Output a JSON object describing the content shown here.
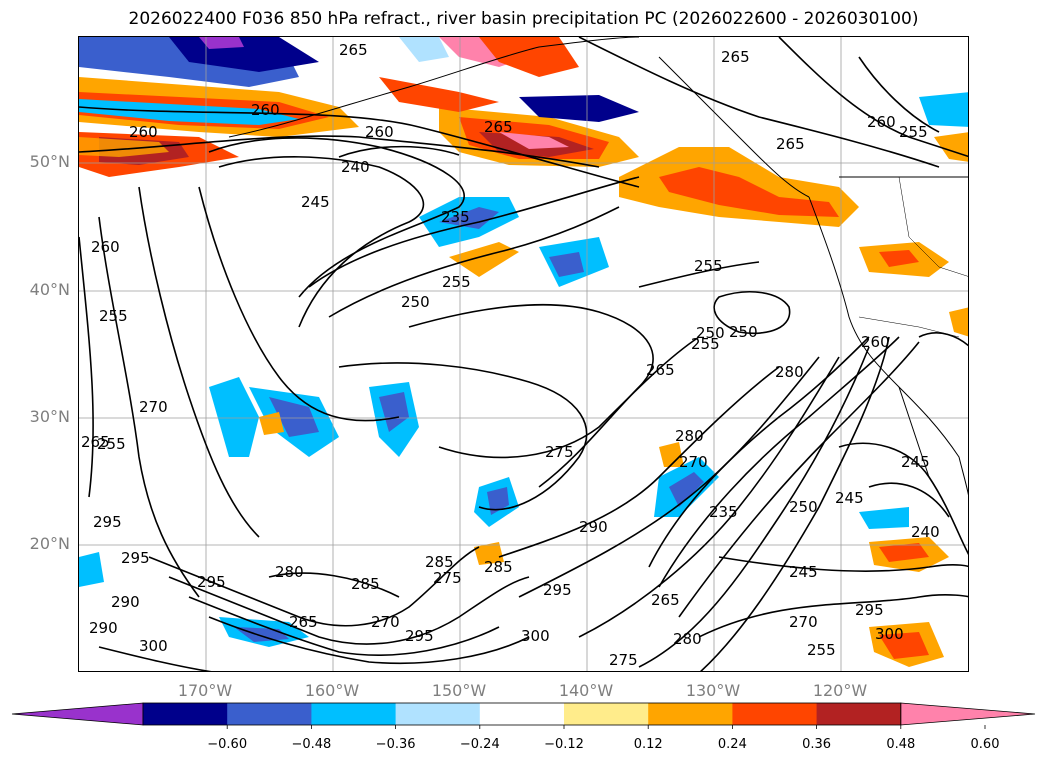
{
  "title": "2026022400 F036 850 hPa refract., river basin precipitation PC (2026022600 - 2026030100)",
  "lat_labels": [
    "50°N",
    "40°N",
    "30°N",
    "20°N"
  ],
  "lon_labels": [
    "170°W",
    "160°W",
    "150°W",
    "140°W",
    "130°W",
    "120°W"
  ],
  "colorbar": {
    "colors": [
      "#9932cc",
      "#00008b",
      "#3a5fcd",
      "#00bfff",
      "#b0e2ff",
      "#ffffff",
      "#ffec8b",
      "#ffa500",
      "#ff4500",
      "#b22222",
      "#ff82ab"
    ],
    "tick_labels": [
      "−0.60",
      "−0.48",
      "−0.36",
      "−0.24",
      "−0.12",
      "0.12",
      "0.24",
      "0.36",
      "0.48",
      "0.60"
    ]
  },
  "contour_labels": [
    "265",
    "265",
    "260",
    "260",
    "260",
    "265",
    "265",
    "260",
    "255",
    "240",
    "245",
    "235",
    "255",
    "260",
    "255",
    "250",
    "250",
    "255",
    "250",
    "260",
    "255",
    "265",
    "280",
    "280",
    "270",
    "270",
    "275",
    "265",
    "255",
    "245",
    "245",
    "250",
    "235",
    "240",
    "290",
    "295",
    "295",
    "295",
    "290",
    "290",
    "280",
    "285",
    "285",
    "285",
    "275",
    "295",
    "265",
    "270",
    "295",
    "300",
    "300",
    "275",
    "280",
    "265",
    "270",
    "300",
    "295",
    "245",
    "255"
  ]
}
